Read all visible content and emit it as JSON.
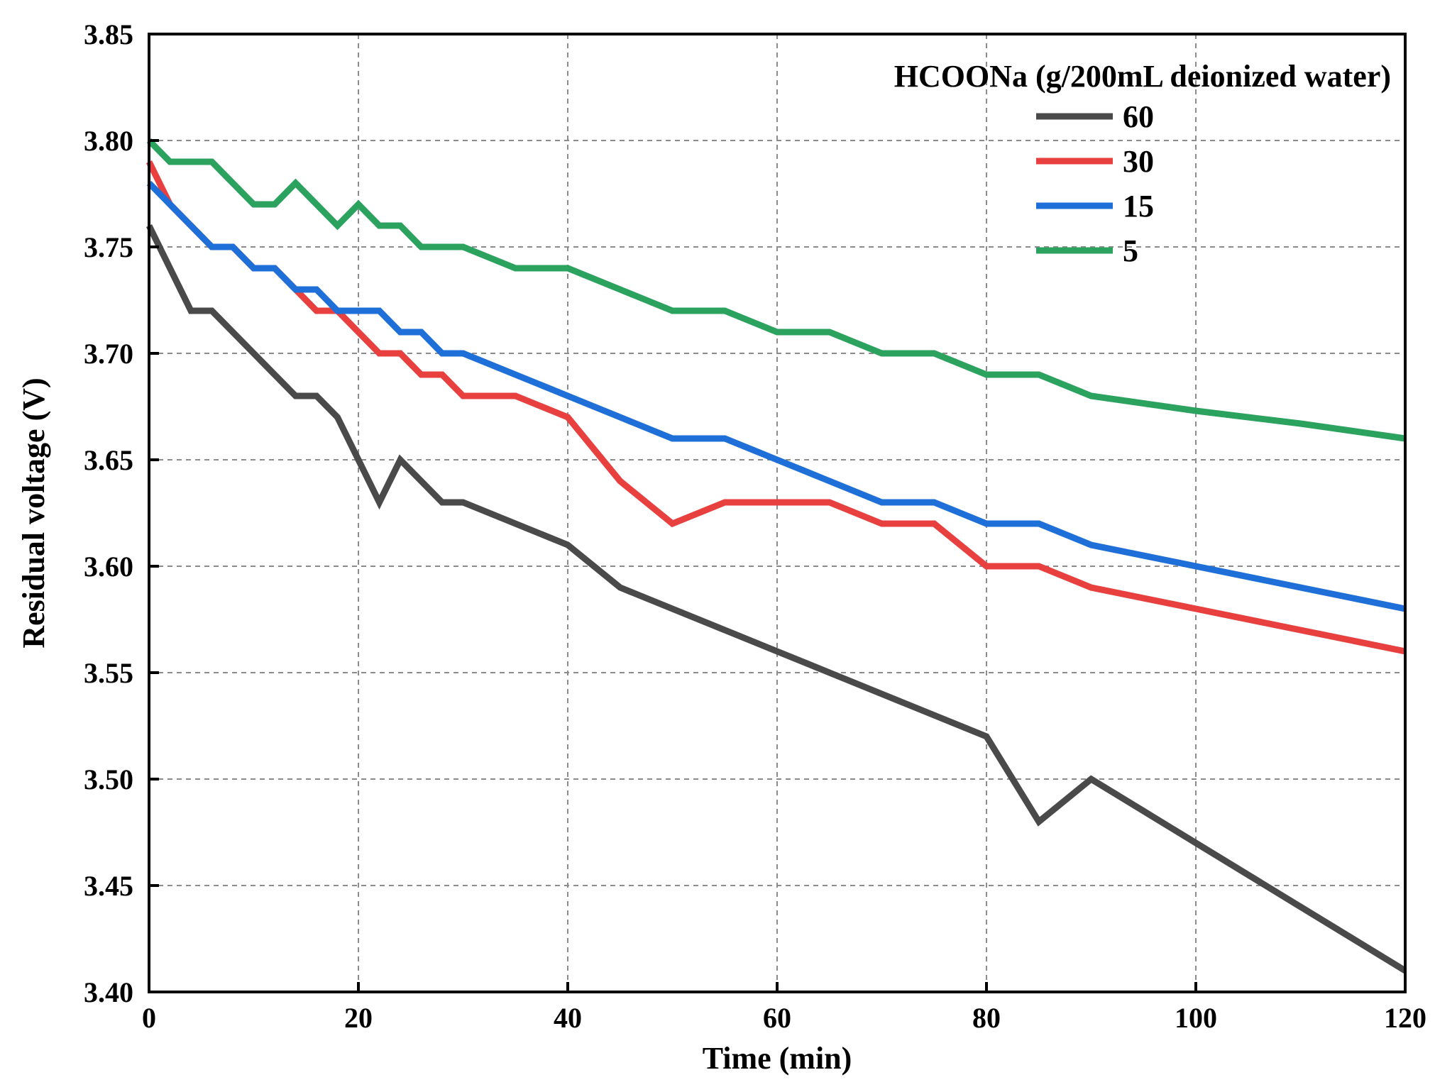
{
  "chart_data": {
    "type": "line",
    "title": "",
    "xlabel": "Time (min)",
    "ylabel": "Residual voltage (V)",
    "xlim": [
      0,
      120
    ],
    "ylim": [
      3.4,
      3.85
    ],
    "grid": true,
    "xticks": [
      0,
      20,
      40,
      60,
      80,
      100,
      120
    ],
    "xtick_labels": [
      "0",
      "20",
      "40",
      "60",
      "80",
      "100",
      "120"
    ],
    "yticks": [
      3.4,
      3.45,
      3.5,
      3.55,
      3.6,
      3.65,
      3.7,
      3.75,
      3.8,
      3.85
    ],
    "ytick_labels": [
      "3.40",
      "3.45",
      "3.50",
      "3.55",
      "3.60",
      "3.65",
      "3.70",
      "3.75",
      "3.80",
      "3.85"
    ],
    "legend": {
      "title": "HCOONa (g/200mL deionized water)",
      "placement": "top-right"
    },
    "series": [
      {
        "name": "60",
        "color": "#4a4a4a",
        "x": [
          0,
          4,
          6,
          10,
          14,
          16,
          18,
          20,
          22,
          24,
          28,
          30,
          35,
          40,
          45,
          50,
          55,
          60,
          65,
          70,
          75,
          80,
          85,
          90,
          95,
          100,
          105,
          110,
          115,
          120
        ],
        "y": [
          3.76,
          3.72,
          3.72,
          3.7,
          3.68,
          3.68,
          3.67,
          3.65,
          3.63,
          3.65,
          3.63,
          3.63,
          3.62,
          3.61,
          3.59,
          3.58,
          3.57,
          3.56,
          3.55,
          3.54,
          3.53,
          3.52,
          3.48,
          3.5,
          3.485,
          3.47,
          3.455,
          3.44,
          3.425,
          3.41
        ]
      },
      {
        "name": "30",
        "color": "#e8403f",
        "x": [
          0,
          2,
          4,
          6,
          8,
          10,
          12,
          14,
          16,
          18,
          20,
          22,
          24,
          26,
          28,
          30,
          35,
          40,
          45,
          50,
          55,
          60,
          65,
          70,
          75,
          80,
          85,
          90,
          100,
          110,
          120
        ],
        "y": [
          3.79,
          3.77,
          3.76,
          3.75,
          3.75,
          3.74,
          3.74,
          3.73,
          3.72,
          3.72,
          3.71,
          3.7,
          3.7,
          3.69,
          3.69,
          3.68,
          3.68,
          3.67,
          3.64,
          3.62,
          3.63,
          3.63,
          3.63,
          3.62,
          3.62,
          3.6,
          3.6,
          3.59,
          3.58,
          3.57,
          3.56
        ]
      },
      {
        "name": "15",
        "color": "#1f6fd8",
        "x": [
          0,
          2,
          4,
          6,
          8,
          10,
          12,
          14,
          16,
          18,
          20,
          22,
          24,
          26,
          28,
          30,
          35,
          40,
          45,
          50,
          55,
          60,
          65,
          70,
          75,
          80,
          85,
          90,
          100,
          110,
          120
        ],
        "y": [
          3.78,
          3.77,
          3.76,
          3.75,
          3.75,
          3.74,
          3.74,
          3.73,
          3.73,
          3.72,
          3.72,
          3.72,
          3.71,
          3.71,
          3.7,
          3.7,
          3.69,
          3.68,
          3.67,
          3.66,
          3.66,
          3.65,
          3.64,
          3.63,
          3.63,
          3.62,
          3.62,
          3.61,
          3.6,
          3.59,
          3.58
        ]
      },
      {
        "name": "5",
        "color": "#2ca25f",
        "x": [
          0,
          2,
          4,
          6,
          8,
          10,
          12,
          14,
          16,
          18,
          20,
          22,
          24,
          26,
          28,
          30,
          35,
          40,
          45,
          50,
          55,
          60,
          65,
          70,
          75,
          80,
          85,
          90,
          100,
          110,
          120
        ],
        "y": [
          3.8,
          3.79,
          3.79,
          3.79,
          3.78,
          3.77,
          3.77,
          3.78,
          3.77,
          3.76,
          3.77,
          3.76,
          3.76,
          3.75,
          3.75,
          3.75,
          3.74,
          3.74,
          3.73,
          3.72,
          3.72,
          3.71,
          3.71,
          3.7,
          3.7,
          3.69,
          3.69,
          3.68,
          3.673,
          3.667,
          3.66
        ]
      }
    ]
  }
}
